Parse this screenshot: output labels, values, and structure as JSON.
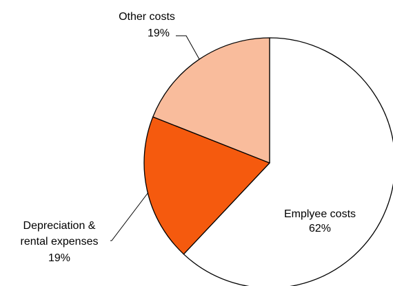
{
  "chart_data": {
    "type": "pie",
    "start_angle_deg": -90,
    "direction": "clockwise",
    "slices": [
      {
        "label_lines": [
          "Emplyee costs"
        ],
        "value_label": "62%",
        "value": 62,
        "color": "#ffffff",
        "label_placement": "inside"
      },
      {
        "label_lines": [
          "Depreciation &",
          "rental expenses"
        ],
        "value_label": "19%",
        "value": 19,
        "color": "#f55a0e",
        "label_placement": "outside-left"
      },
      {
        "label_lines": [
          "Other costs"
        ],
        "value_label": "19%",
        "value": 19,
        "color": "#f9bc9c",
        "label_placement": "outside-top"
      }
    ],
    "title": "",
    "legend": "none"
  }
}
